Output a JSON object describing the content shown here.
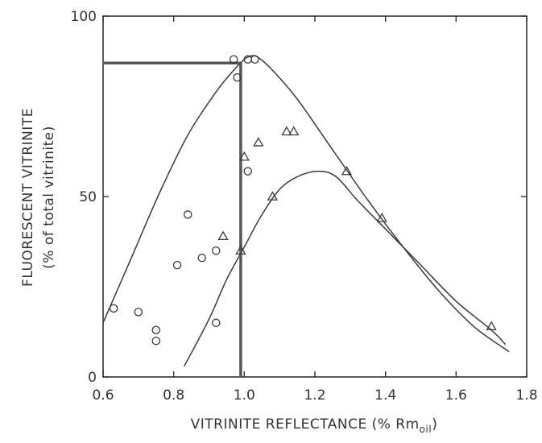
{
  "chart_data": {
    "type": "scatter",
    "xlabel": "VITRINITE  REFLECTANCE  (% Rm",
    "xlabel_sub": "oil",
    "xlabel_close": ")",
    "ylabel_line1": "FLUORESCENT  VITRINITE",
    "ylabel_line2": "(% of total vitrinite)",
    "xlim": [
      0.6,
      1.8
    ],
    "ylim": [
      0,
      100
    ],
    "x_ticks": [
      "0.6",
      "0.8",
      "1.0",
      "1.2",
      "1.4",
      "1.6",
      "1.8"
    ],
    "y_ticks": [
      "0",
      "50",
      "100"
    ],
    "grid": false,
    "series": [
      {
        "marker": "circle",
        "points": [
          [
            0.63,
            19
          ],
          [
            0.7,
            18
          ],
          [
            0.75,
            13
          ],
          [
            0.75,
            10
          ],
          [
            0.81,
            31
          ],
          [
            0.84,
            45
          ],
          [
            0.88,
            33
          ],
          [
            0.92,
            35
          ],
          [
            0.92,
            15
          ],
          [
            0.97,
            88
          ],
          [
            0.98,
            83
          ],
          [
            1.01,
            88
          ],
          [
            1.03,
            88
          ],
          [
            1.01,
            57
          ]
        ]
      },
      {
        "marker": "triangle",
        "points": [
          [
            0.94,
            39
          ],
          [
            0.99,
            35
          ],
          [
            1.0,
            61
          ],
          [
            1.04,
            65
          ],
          [
            1.08,
            50
          ],
          [
            1.12,
            68
          ],
          [
            1.14,
            68
          ],
          [
            1.29,
            57
          ],
          [
            1.39,
            44
          ],
          [
            1.7,
            14
          ]
        ]
      }
    ],
    "curves": [
      {
        "role": "upper-envelope",
        "points": [
          [
            0.6,
            15
          ],
          [
            0.68,
            33
          ],
          [
            0.76,
            51
          ],
          [
            0.84,
            67
          ],
          [
            0.92,
            79
          ],
          [
            0.97,
            85
          ],
          [
            1.0,
            88
          ],
          [
            1.02,
            89
          ],
          [
            1.04,
            88.5
          ],
          [
            1.08,
            85
          ],
          [
            1.15,
            77
          ],
          [
            1.25,
            63
          ],
          [
            1.35,
            49
          ],
          [
            1.45,
            36
          ],
          [
            1.55,
            24
          ],
          [
            1.65,
            14
          ],
          [
            1.75,
            7
          ]
        ]
      },
      {
        "role": "lower-envelope",
        "points": [
          [
            0.83,
            3
          ],
          [
            0.9,
            16
          ],
          [
            0.95,
            27
          ],
          [
            1.0,
            36
          ],
          [
            1.05,
            45
          ],
          [
            1.1,
            52
          ],
          [
            1.15,
            55.5
          ],
          [
            1.21,
            57
          ],
          [
            1.26,
            55.5
          ],
          [
            1.32,
            49
          ],
          [
            1.4,
            41
          ],
          [
            1.5,
            31
          ],
          [
            1.6,
            21
          ],
          [
            1.7,
            13
          ],
          [
            1.74,
            9
          ]
        ]
      },
      {
        "role": "guide-line",
        "points": [
          [
            0.6,
            87
          ],
          [
            0.99,
            87
          ],
          [
            0.99,
            0
          ]
        ]
      }
    ]
  }
}
